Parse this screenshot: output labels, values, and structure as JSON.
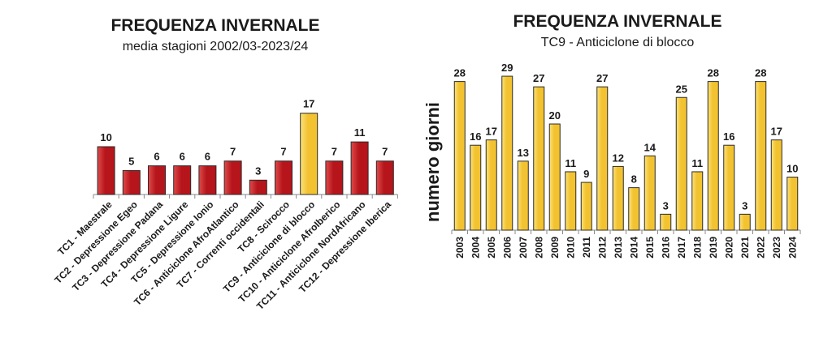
{
  "colors": {
    "red_bar": "#b5151b",
    "red_bar_light": "#e04a4a",
    "gold_bar": "#f2c230",
    "gold_bar_light": "#fbe27a",
    "bar_edge": "#2b2b2b"
  },
  "chart_data": [
    {
      "type": "bar",
      "title": "FREQUENZA INVERNALE",
      "subtitle": "media stagioni 2002/03-2023/24",
      "xlabel": "",
      "ylabel": "",
      "grid": false,
      "categories": [
        "TC1 - Maestrale",
        "TC2 - Depressione Egeo",
        "TC3 - Depressione Padana",
        "TC4 - Depressione Ligure",
        "TC5 - Depressione Ionio",
        "TC6 - Anticiclone AfroAtlantico",
        "TC7 - Correnti occidentali",
        "TC8 - Scirocco",
        "TC9 - Anticiclone di blocco",
        "TC10 - Anticiclone AfroIberico",
        "TC11 - Anticiclone NordAfricano",
        "TC12 - Depressione Iberica"
      ],
      "values": [
        10,
        5,
        6,
        6,
        6,
        7,
        3,
        7,
        17,
        7,
        11,
        7
      ],
      "highlight_index": 8
    },
    {
      "type": "bar",
      "title": "FREQUENZA INVERNALE",
      "subtitle": "TC9 - Anticiclone di blocco",
      "xlabel": "",
      "ylabel": "numero giorni",
      "grid": false,
      "categories": [
        "2003",
        "2004",
        "2005",
        "2006",
        "2007",
        "2008",
        "2009",
        "2010",
        "2011",
        "2012",
        "2013",
        "2014",
        "2015",
        "2016",
        "2017",
        "2018",
        "2019",
        "2020",
        "2021",
        "2022",
        "2023",
        "2024"
      ],
      "values": [
        28,
        16,
        17,
        29,
        13,
        27,
        20,
        11,
        9,
        27,
        12,
        8,
        14,
        3,
        25,
        11,
        28,
        16,
        3,
        28,
        17,
        10
      ]
    }
  ]
}
